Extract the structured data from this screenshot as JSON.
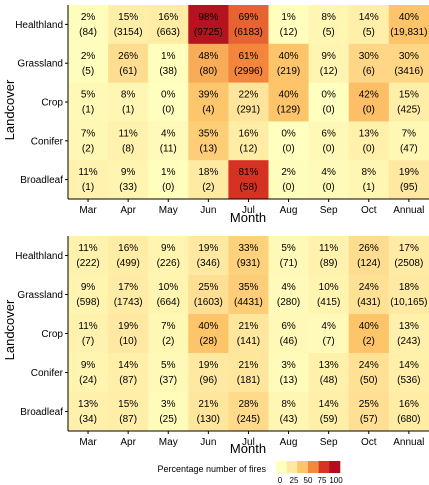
{
  "chart_data": [
    {
      "type": "heatmap",
      "xlabel": "Month",
      "ylabel": "Landcover",
      "x_categories": [
        "Mar",
        "Apr",
        "May",
        "Jun",
        "Jul",
        "Aug",
        "Sep",
        "Oct",
        "Annual"
      ],
      "y_categories": [
        "Healthland",
        "Grassland",
        "Crop",
        "Conifer",
        "Broadleaf"
      ],
      "cells": [
        [
          {
            "pct": "2%",
            "count": "(84)",
            "value": 2
          },
          {
            "pct": "15%",
            "count": "(3154)",
            "value": 15
          },
          {
            "pct": "16%",
            "count": "(663)",
            "value": 16
          },
          {
            "pct": "98%",
            "count": "(9725)",
            "value": 98
          },
          {
            "pct": "69%",
            "count": "(6183)",
            "value": 69
          },
          {
            "pct": "1%",
            "count": "(12)",
            "value": 1
          },
          {
            "pct": "8%",
            "count": "(5)",
            "value": 8
          },
          {
            "pct": "14%",
            "count": "(5)",
            "value": 14
          },
          {
            "pct": "40%",
            "count": "(19,831)",
            "value": 40
          }
        ],
        [
          {
            "pct": "2%",
            "count": "(5)",
            "value": 2
          },
          {
            "pct": "26%",
            "count": "(61)",
            "value": 26
          },
          {
            "pct": "1%",
            "count": "(38)",
            "value": 1
          },
          {
            "pct": "48%",
            "count": "(80)",
            "value": 48
          },
          {
            "pct": "61%",
            "count": "(2996)",
            "value": 61
          },
          {
            "pct": "40%",
            "count": "(219)",
            "value": 40
          },
          {
            "pct": "9%",
            "count": "(12)",
            "value": 9
          },
          {
            "pct": "30%",
            "count": "(6)",
            "value": 30
          },
          {
            "pct": "30%",
            "count": "(3416)",
            "value": 30
          }
        ],
        [
          {
            "pct": "5%",
            "count": "(1)",
            "value": 5
          },
          {
            "pct": "8%",
            "count": "(1)",
            "value": 8
          },
          {
            "pct": "0%",
            "count": "(0)",
            "value": 0
          },
          {
            "pct": "39%",
            "count": "(4)",
            "value": 39
          },
          {
            "pct": "22%",
            "count": "(291)",
            "value": 22
          },
          {
            "pct": "40%",
            "count": "(129)",
            "value": 40
          },
          {
            "pct": "0%",
            "count": "(0)",
            "value": 0
          },
          {
            "pct": "42%",
            "count": "(0)",
            "value": 42
          },
          {
            "pct": "15%",
            "count": "(425)",
            "value": 15
          }
        ],
        [
          {
            "pct": "7%",
            "count": "(2)",
            "value": 7
          },
          {
            "pct": "11%",
            "count": "(8)",
            "value": 11
          },
          {
            "pct": "4%",
            "count": "(11)",
            "value": 4
          },
          {
            "pct": "35%",
            "count": "(13)",
            "value": 35
          },
          {
            "pct": "16%",
            "count": "(12)",
            "value": 16
          },
          {
            "pct": "0%",
            "count": "(0)",
            "value": 0
          },
          {
            "pct": "6%",
            "count": "(0)",
            "value": 6
          },
          {
            "pct": "13%",
            "count": "(0)",
            "value": 13
          },
          {
            "pct": "7%",
            "count": "(47)",
            "value": 7
          }
        ],
        [
          {
            "pct": "11%",
            "count": "(1)",
            "value": 11
          },
          {
            "pct": "9%",
            "count": "(33)",
            "value": 9
          },
          {
            "pct": "1%",
            "count": "(0)",
            "value": 1
          },
          {
            "pct": "18%",
            "count": "(2)",
            "value": 18
          },
          {
            "pct": "81%",
            "count": "(58)",
            "value": 81
          },
          {
            "pct": "2%",
            "count": "(0)",
            "value": 2
          },
          {
            "pct": "4%",
            "count": "(0)",
            "value": 4
          },
          {
            "pct": "8%",
            "count": "(1)",
            "value": 8
          },
          {
            "pct": "19%",
            "count": "(95)",
            "value": 19
          }
        ]
      ]
    },
    {
      "type": "heatmap",
      "xlabel": "Month",
      "ylabel": "Landcover",
      "x_categories": [
        "Mar",
        "Apr",
        "May",
        "Jun",
        "Jul",
        "Aug",
        "Sep",
        "Oct",
        "Annual"
      ],
      "y_categories": [
        "Healthland",
        "Grassland",
        "Crop",
        "Conifer",
        "Broadleaf"
      ],
      "cells": [
        [
          {
            "pct": "11%",
            "count": "(222)",
            "value": 11
          },
          {
            "pct": "16%",
            "count": "(499)",
            "value": 16
          },
          {
            "pct": "9%",
            "count": "(226)",
            "value": 9
          },
          {
            "pct": "19%",
            "count": "(346)",
            "value": 19
          },
          {
            "pct": "33%",
            "count": "(931)",
            "value": 33
          },
          {
            "pct": "5%",
            "count": "(71)",
            "value": 5
          },
          {
            "pct": "11%",
            "count": "(89)",
            "value": 11
          },
          {
            "pct": "26%",
            "count": "(124)",
            "value": 26
          },
          {
            "pct": "17%",
            "count": "(2508)",
            "value": 17
          }
        ],
        [
          {
            "pct": "9%",
            "count": "(598)",
            "value": 9
          },
          {
            "pct": "17%",
            "count": "(1743)",
            "value": 17
          },
          {
            "pct": "10%",
            "count": "(664)",
            "value": 10
          },
          {
            "pct": "25%",
            "count": "(1603)",
            "value": 25
          },
          {
            "pct": "35%",
            "count": "(4431)",
            "value": 35
          },
          {
            "pct": "4%",
            "count": "(280)",
            "value": 4
          },
          {
            "pct": "10%",
            "count": "(415)",
            "value": 10
          },
          {
            "pct": "24%",
            "count": "(431)",
            "value": 24
          },
          {
            "pct": "18%",
            "count": "(10,165)",
            "value": 18
          }
        ],
        [
          {
            "pct": "11%",
            "count": "(7)",
            "value": 11
          },
          {
            "pct": "19%",
            "count": "(10)",
            "value": 19
          },
          {
            "pct": "7%",
            "count": "(2)",
            "value": 7
          },
          {
            "pct": "40%",
            "count": "(28)",
            "value": 40
          },
          {
            "pct": "21%",
            "count": "(141)",
            "value": 21
          },
          {
            "pct": "6%",
            "count": "(46)",
            "value": 6
          },
          {
            "pct": "4%",
            "count": "(7)",
            "value": 4
          },
          {
            "pct": "40%",
            "count": "(2)",
            "value": 40
          },
          {
            "pct": "13%",
            "count": "(243)",
            "value": 13
          }
        ],
        [
          {
            "pct": "9%",
            "count": "(24)",
            "value": 9
          },
          {
            "pct": "14%",
            "count": "(87)",
            "value": 14
          },
          {
            "pct": "5%",
            "count": "(37)",
            "value": 5
          },
          {
            "pct": "19%",
            "count": "(96)",
            "value": 19
          },
          {
            "pct": "21%",
            "count": "(181)",
            "value": 21
          },
          {
            "pct": "3%",
            "count": "(13)",
            "value": 3
          },
          {
            "pct": "13%",
            "count": "(48)",
            "value": 13
          },
          {
            "pct": "24%",
            "count": "(50)",
            "value": 24
          },
          {
            "pct": "14%",
            "count": "(536)",
            "value": 14
          }
        ],
        [
          {
            "pct": "13%",
            "count": "(34)",
            "value": 13
          },
          {
            "pct": "15%",
            "count": "(87)",
            "value": 15
          },
          {
            "pct": "3%",
            "count": "(25)",
            "value": 3
          },
          {
            "pct": "21%",
            "count": "(130)",
            "value": 21
          },
          {
            "pct": "28%",
            "count": "(245)",
            "value": 28
          },
          {
            "pct": "8%",
            "count": "(43)",
            "value": 8
          },
          {
            "pct": "14%",
            "count": "(59)",
            "value": 14
          },
          {
            "pct": "25%",
            "count": "(57)",
            "value": 25
          },
          {
            "pct": "16%",
            "count": "(680)",
            "value": 16
          }
        ]
      ]
    }
  ],
  "legend": {
    "title": "Percentage number of fires",
    "ticks": [
      "0",
      "25",
      "50",
      "75",
      "100"
    ],
    "colors": [
      "#ffffbf",
      "#ffe8a0",
      "#fdc46a",
      "#f4893e",
      "#d83424",
      "#b10f1f"
    ]
  }
}
